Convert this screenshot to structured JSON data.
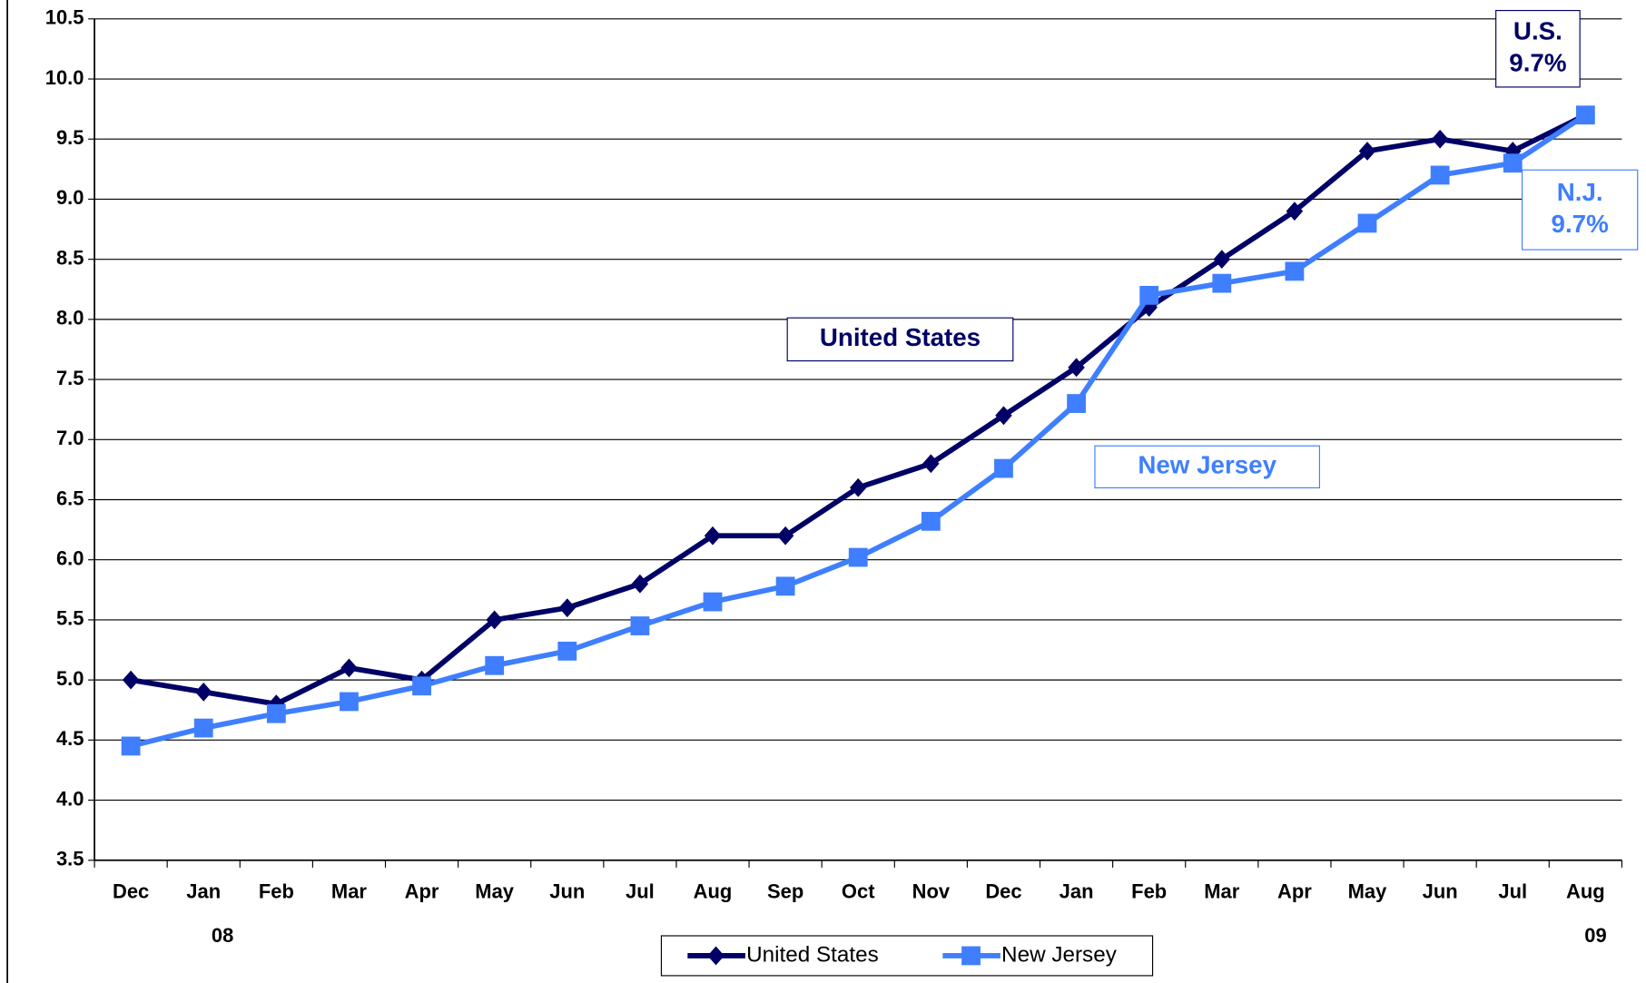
{
  "chart_data": {
    "type": "line",
    "categories": [
      "Dec",
      "Jan",
      "Feb",
      "Mar",
      "Apr",
      "May",
      "Jun",
      "Jul",
      "Aug",
      "Sep",
      "Oct",
      "Nov",
      "Dec",
      "Jan",
      "Feb",
      "Mar",
      "Apr",
      "May",
      "Jun",
      "Jul",
      "Aug"
    ],
    "series": [
      {
        "name": "United States",
        "color": "#000066",
        "marker": "diamond",
        "values": [
          5.0,
          4.9,
          4.8,
          5.1,
          5.0,
          5.5,
          5.6,
          5.8,
          6.2,
          6.2,
          6.6,
          6.8,
          7.2,
          7.6,
          8.1,
          8.5,
          8.9,
          9.4,
          9.5,
          9.4,
          9.7
        ]
      },
      {
        "name": "New Jersey",
        "color": "#3f7fff",
        "marker": "square",
        "values": [
          4.45,
          4.6,
          4.72,
          4.82,
          4.95,
          5.12,
          5.24,
          5.45,
          5.65,
          5.78,
          6.02,
          6.32,
          6.76,
          7.3,
          8.2,
          8.3,
          8.4,
          8.8,
          9.2,
          9.3,
          9.7
        ]
      }
    ],
    "ylim": [
      3.5,
      10.5
    ],
    "yticks": [
      3.5,
      {
        "value": 4,
        "label": "4.0"
      },
      4.5,
      {
        "value": 5,
        "label": "5.0"
      },
      5.5,
      {
        "value": 6,
        "label": "6.0"
      },
      6.5,
      {
        "value": 7,
        "label": "7.0"
      },
      7.5,
      {
        "value": 8,
        "label": "8.0"
      },
      8.5,
      {
        "value": 9,
        "label": "9.0"
      },
      9.5,
      {
        "value": 10,
        "label": "10.0"
      },
      10.5
    ],
    "grid": true,
    "legend": "bottom",
    "year_labels": [
      "08",
      "09"
    ],
    "annotations": [
      {
        "lines": [
          "United States"
        ],
        "color": "#000066"
      },
      {
        "lines": [
          "New Jersey"
        ],
        "color": "#3f7fff"
      },
      {
        "lines": [
          "U.S.",
          "9.7%"
        ],
        "color": "#000066"
      },
      {
        "lines": [
          "N.J.",
          "9.7%"
        ],
        "color": "#3f7fff"
      }
    ]
  }
}
